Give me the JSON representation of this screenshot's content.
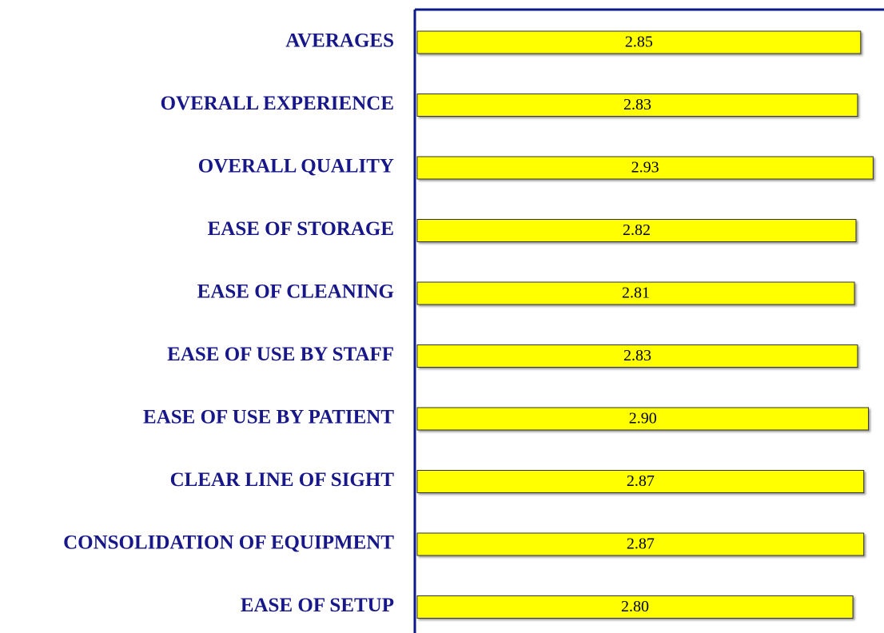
{
  "chart_data": {
    "type": "hbar",
    "categories": [
      "AVERAGES",
      "OVERALL EXPERIENCE",
      "OVERALL QUALITY",
      "EASE OF STORAGE",
      "EASE OF CLEANING",
      "EASE OF USE BY STAFF",
      "EASE OF USE BY PATIENT",
      "CLEAR LINE OF SIGHT",
      "CONSOLIDATION OF EQUIPMENT",
      "EASE OF SETUP"
    ],
    "values": [
      2.85,
      2.83,
      2.93,
      2.82,
      2.81,
      2.83,
      2.9,
      2.87,
      2.87,
      2.8
    ],
    "value_labels": [
      "2.85",
      "2.83",
      "2.93",
      "2.82",
      "2.81",
      "2.83",
      "2.90",
      "2.87",
      "2.87",
      "2.80"
    ],
    "color": "#ffff00",
    "xlim": [
      0,
      3
    ]
  }
}
